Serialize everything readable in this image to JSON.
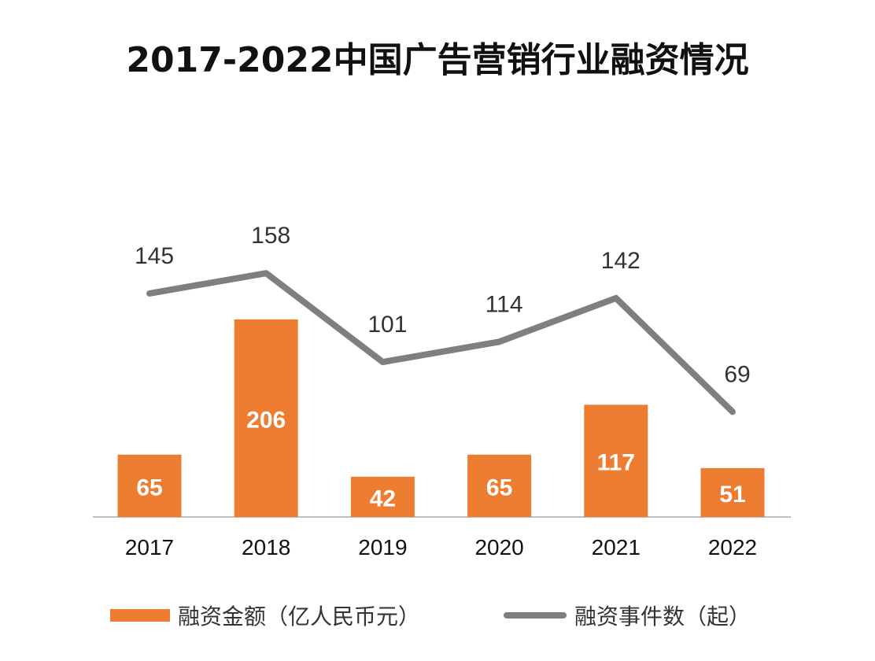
{
  "chart_data": {
    "type": "bar+line",
    "title": "2017-2022中国广告营销行业融资情况",
    "categories": [
      "2017",
      "2018",
      "2019",
      "2020",
      "2021",
      "2022"
    ],
    "series": [
      {
        "name": "融资金额（亿人民币元）",
        "type": "bar",
        "values": [
          65,
          206,
          42,
          65,
          117,
          51
        ],
        "color": "#ED7D31"
      },
      {
        "name": "融资事件数（起）",
        "type": "line",
        "values": [
          145,
          158,
          101,
          114,
          142,
          69
        ],
        "color": "#7F7F7F"
      }
    ],
    "grid": false,
    "legend": "bottom",
    "data_labels": true
  }
}
